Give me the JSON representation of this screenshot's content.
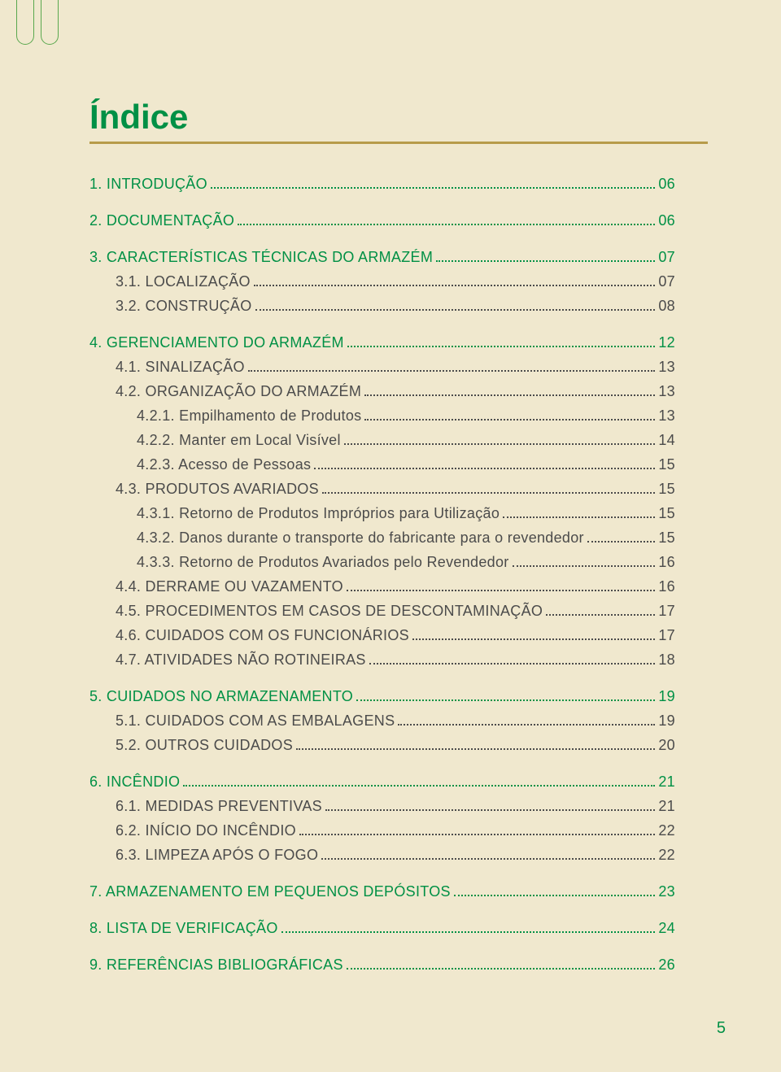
{
  "colors": {
    "background": "#f0e8ce",
    "accent_green": "#009045",
    "tab_green": "#5aa84e",
    "rule_gold": "#b79b4a",
    "body_text": "#4b4b4b"
  },
  "title": "Índice",
  "page_number": "5",
  "toc": [
    {
      "type": "section",
      "num": "1.",
      "label": "INTRODUÇÃO",
      "page": "06"
    },
    {
      "type": "section",
      "num": "2.",
      "label": "DOCUMENTAÇÃO",
      "page": "06"
    },
    {
      "type": "section",
      "num": "3.",
      "label": "CARACTERÍSTICAS TÉCNICAS DO ARMAZÉM",
      "page": "07"
    },
    {
      "type": "sub",
      "indent": 1,
      "num": "3.1.",
      "label": "LOCALIZAÇÃO",
      "page": "07"
    },
    {
      "type": "sub",
      "indent": 1,
      "num": "3.2.",
      "label": "CONSTRUÇÃO",
      "page": "08"
    },
    {
      "type": "section",
      "num": "4.",
      "label": "GERENCIAMENTO DO ARMAZÉM",
      "page": "12"
    },
    {
      "type": "sub",
      "indent": 1,
      "num": "4.1.",
      "label": "SINALIZAÇÃO",
      "page": "13"
    },
    {
      "type": "sub",
      "indent": 1,
      "num": "4.2.",
      "label": "ORGANIZAÇÃO DO ARMAZÉM",
      "page": "13"
    },
    {
      "type": "sub",
      "indent": 2,
      "num": "4.2.1.",
      "label": "Empilhamento de Produtos",
      "page": "13"
    },
    {
      "type": "sub",
      "indent": 2,
      "num": "4.2.2.",
      "label": "Manter em Local Visível",
      "page": "14"
    },
    {
      "type": "sub",
      "indent": 2,
      "num": "4.2.3.",
      "label": "Acesso de Pessoas",
      "page": "15"
    },
    {
      "type": "sub",
      "indent": 1,
      "num": "4.3.",
      "label": "PRODUTOS AVARIADOS",
      "page": "15"
    },
    {
      "type": "sub",
      "indent": 2,
      "num": "4.3.1.",
      "label": "Retorno de Produtos Impróprios para Utilização",
      "page": "15"
    },
    {
      "type": "sub",
      "indent": 2,
      "num": "4.3.2.",
      "label": "Danos durante o transporte do fabricante para o revendedor",
      "page": "15"
    },
    {
      "type": "sub",
      "indent": 2,
      "num": "4.3.3.",
      "label": "Retorno de Produtos Avariados pelo Revendedor",
      "page": "16"
    },
    {
      "type": "sub",
      "indent": 1,
      "num": "4.4.",
      "label": "DERRAME OU VAZAMENTO",
      "page": "16"
    },
    {
      "type": "sub",
      "indent": 1,
      "num": "4.5.",
      "label": "PROCEDIMENTOS EM CASOS DE DESCONTAMINAÇÃO",
      "page": "17"
    },
    {
      "type": "sub",
      "indent": 1,
      "num": "4.6.",
      "label": "CUIDADOS COM OS FUNCIONÁRIOS",
      "page": "17"
    },
    {
      "type": "sub",
      "indent": 1,
      "num": "4.7.",
      "label": "ATIVIDADES NÃO ROTINEIRAS",
      "page": "18"
    },
    {
      "type": "section",
      "num": "5.",
      "label": "CUIDADOS NO ARMAZENAMENTO",
      "page": "19"
    },
    {
      "type": "sub",
      "indent": 1,
      "num": "5.1.",
      "label": "CUIDADOS COM AS EMBALAGENS",
      "page": "19"
    },
    {
      "type": "sub",
      "indent": 1,
      "num": "5.2.",
      "label": "OUTROS CUIDADOS",
      "page": "20"
    },
    {
      "type": "section",
      "num": "6.",
      "label": "INCÊNDIO",
      "page": "21"
    },
    {
      "type": "sub",
      "indent": 1,
      "num": "6.1.",
      "label": "MEDIDAS PREVENTIVAS",
      "page": "21"
    },
    {
      "type": "sub",
      "indent": 1,
      "num": "6.2.",
      "label": "INÍCIO DO INCÊNDIO",
      "page": "22"
    },
    {
      "type": "sub",
      "indent": 1,
      "num": "6.3.",
      "label": "LIMPEZA APÓS O FOGO",
      "page": "22"
    },
    {
      "type": "section",
      "num": "7.",
      "label": "ARMAZENAMENTO EM PEQUENOS DEPÓSITOS",
      "page": "23"
    },
    {
      "type": "section",
      "num": "8.",
      "label": "LISTA DE VERIFICAÇÃO",
      "page": "24"
    },
    {
      "type": "section",
      "num": "9.",
      "label": "REFERÊNCIAS BIBLIOGRÁFICAS",
      "page": "26"
    }
  ]
}
